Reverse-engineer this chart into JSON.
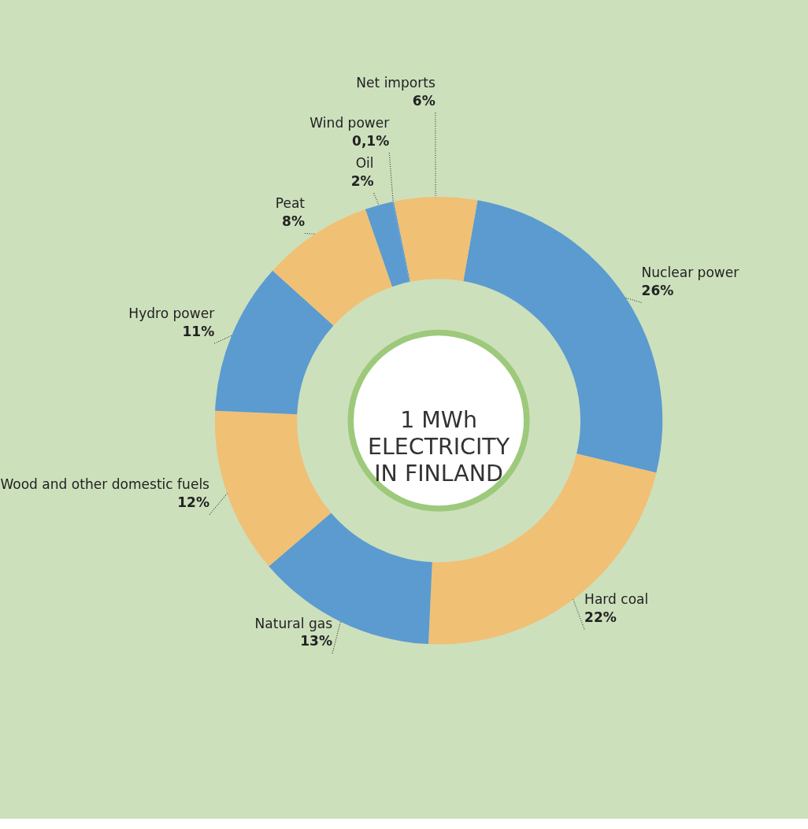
{
  "chart_data": {
    "type": "donut",
    "title": "1 MWh\nELECTRICITY\nIN FINLAND",
    "categories": [
      "Nuclear power",
      "Hard coal",
      "Natural gas",
      "Wood and other domestic fuels",
      "Hydro power",
      "Peat",
      "Oil",
      "Wind power",
      "Net imports"
    ],
    "values": [
      26,
      22,
      13,
      12,
      11,
      8,
      2,
      0.1,
      6
    ],
    "value_labels": [
      "26%",
      "22%",
      "13%",
      "12%",
      "11%",
      "8%",
      "2%",
      "0,1%",
      "6%"
    ],
    "colors": [
      "#5b9bd0",
      "#f0c075",
      "#5b9bd0",
      "#f0c075",
      "#5b9bd0",
      "#f0c075",
      "#5b9bd0",
      "#5b9bd0",
      "#f0c075"
    ]
  }
}
